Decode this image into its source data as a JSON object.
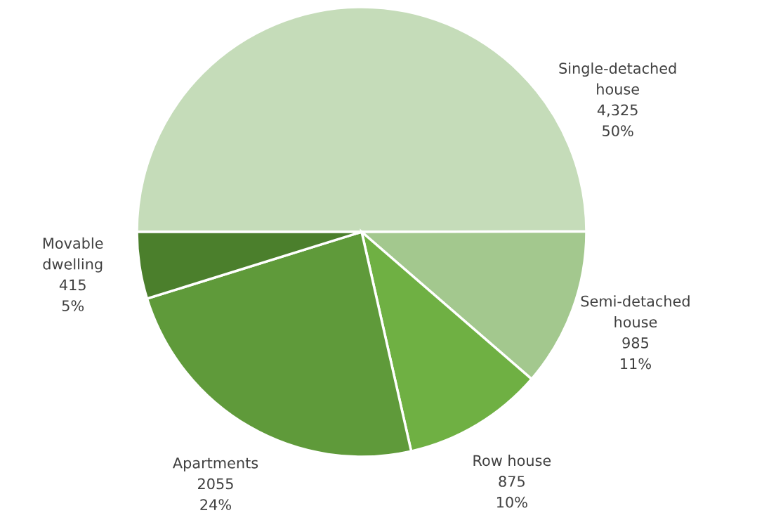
{
  "chart_data": {
    "type": "pie",
    "categories": [
      "Single-detached\nhouse",
      "Semi-detached\nhouse",
      "Row house",
      "Apartments",
      "Movable\ndwelling"
    ],
    "values": [
      4325,
      985,
      875,
      2055,
      415
    ],
    "value_labels": [
      "4,325\n50%",
      "985\n11%",
      "875\n10%",
      "2055\n24%",
      "415\n5%"
    ],
    "colors": [
      "#c5dcb9",
      "#a3c88e",
      "#6fb043",
      "#5f9a3a",
      "#4b7f2c"
    ]
  }
}
